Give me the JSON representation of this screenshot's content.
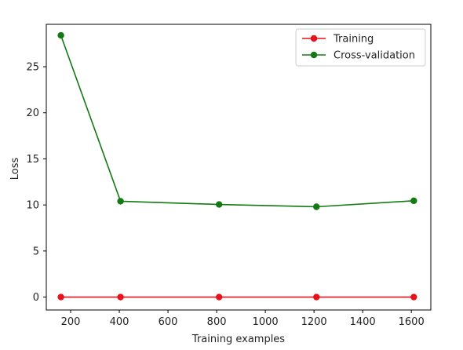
{
  "chart_data": {
    "type": "line",
    "title": "",
    "xlabel": "Training examples",
    "ylabel": "Loss",
    "xlim": [
      100,
      1680
    ],
    "ylim": [
      -1.4,
      29.6
    ],
    "xticks": [
      200,
      400,
      600,
      800,
      1000,
      1200,
      1400,
      1600
    ],
    "yticks": [
      0,
      5,
      10,
      15,
      20,
      25
    ],
    "grid": false,
    "legend_position": "top-right",
    "series": [
      {
        "name": "Training",
        "color": "#e8121c",
        "x": [
          160,
          405,
          810,
          1210,
          1610
        ],
        "values": [
          0.0,
          0.0,
          0.0,
          0.0,
          0.0
        ]
      },
      {
        "name": "Cross-validation",
        "color": "#137a13",
        "x": [
          160,
          405,
          810,
          1210,
          1610
        ],
        "values": [
          28.4,
          10.4,
          10.05,
          9.8,
          10.45
        ]
      }
    ]
  }
}
